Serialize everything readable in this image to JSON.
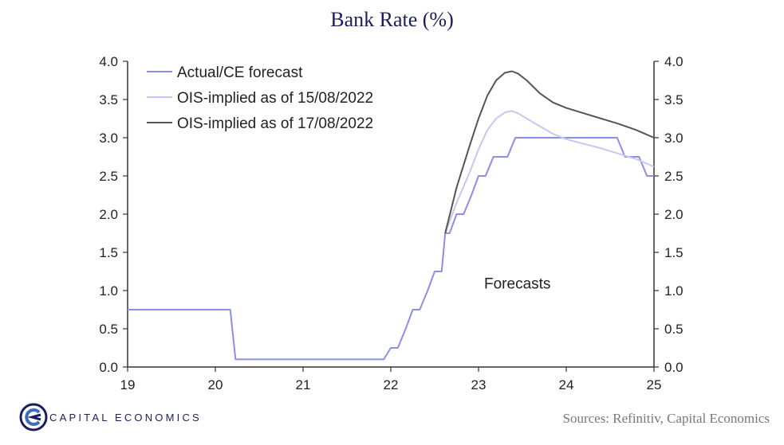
{
  "title": "Bank Rate (%)",
  "sources": "Sources:  Refinitiv,  Capital Economics",
  "brand": {
    "name": "CAPITAL ECONOMICS",
    "color": "#1a1f5c"
  },
  "chart_data": {
    "type": "line",
    "title": "Bank Rate (%)",
    "xlabel": "",
    "ylabel": "",
    "xlim": [
      19,
      25
    ],
    "ylim": [
      0,
      4
    ],
    "xticks": [
      "19",
      "20",
      "21",
      "22",
      "23",
      "24",
      "25"
    ],
    "yticks_left": [
      "0.0",
      "0.5",
      "1.0",
      "1.5",
      "2.0",
      "2.5",
      "3.0",
      "3.5",
      "4.0"
    ],
    "yticks_right": [
      "0.0",
      "0.5",
      "1.0",
      "1.5",
      "2.0",
      "2.5",
      "3.0",
      "3.5",
      "4.0"
    ],
    "grid": false,
    "legend_position": "top-left",
    "annotations": [
      {
        "text": "Forecasts",
        "x": 23.7,
        "y": 1.1
      }
    ],
    "series": [
      {
        "name": "Actual/CE forecast",
        "color": "#8c8fe8",
        "step": true,
        "x": [
          19.0,
          20.17,
          20.23,
          21.92,
          22.0,
          22.08,
          22.17,
          22.25,
          22.33,
          22.42,
          22.5,
          22.58,
          22.62,
          22.67,
          22.75,
          22.83,
          22.92,
          23.0,
          23.08,
          23.17,
          23.25,
          23.33,
          23.42,
          24.58,
          24.67,
          24.83,
          24.92,
          25.0
        ],
        "y": [
          0.75,
          0.75,
          0.1,
          0.1,
          0.25,
          0.25,
          0.5,
          0.75,
          0.75,
          1.0,
          1.25,
          1.25,
          1.75,
          1.75,
          2.0,
          2.0,
          2.25,
          2.5,
          2.5,
          2.75,
          2.75,
          2.75,
          3.0,
          3.0,
          2.75,
          2.75,
          2.5,
          2.5
        ]
      },
      {
        "name": "OIS-implied as of 15/08/2022",
        "color": "#c5c8f0",
        "x": [
          22.62,
          22.75,
          22.9,
          23.0,
          23.1,
          23.2,
          23.3,
          23.38,
          23.45,
          23.55,
          23.7,
          23.85,
          24.0,
          24.2,
          24.4,
          24.6,
          24.8,
          25.0
        ],
        "y": [
          1.75,
          2.15,
          2.55,
          2.85,
          3.1,
          3.25,
          3.33,
          3.35,
          3.32,
          3.25,
          3.15,
          3.05,
          2.98,
          2.92,
          2.86,
          2.79,
          2.72,
          2.62
        ]
      },
      {
        "name": "OIS-implied as of 17/08/2022",
        "color": "#555555",
        "x": [
          22.62,
          22.75,
          22.9,
          23.0,
          23.1,
          23.2,
          23.3,
          23.38,
          23.45,
          23.55,
          23.7,
          23.85,
          24.0,
          24.2,
          24.4,
          24.6,
          24.8,
          25.0
        ],
        "y": [
          1.75,
          2.35,
          2.9,
          3.25,
          3.55,
          3.75,
          3.85,
          3.87,
          3.84,
          3.75,
          3.58,
          3.46,
          3.39,
          3.32,
          3.25,
          3.18,
          3.1,
          3.0
        ]
      }
    ]
  }
}
